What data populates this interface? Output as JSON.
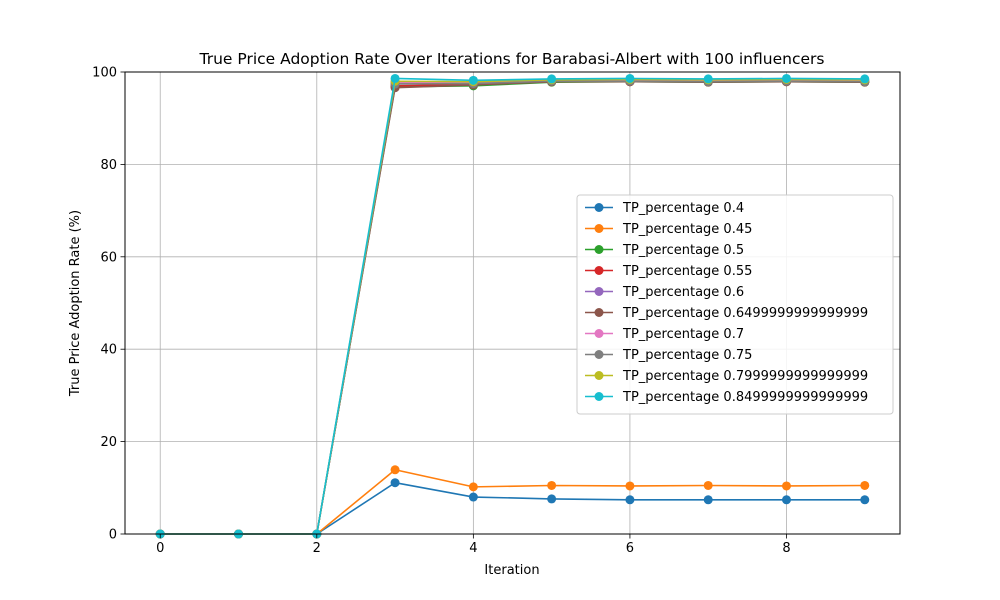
{
  "chart_data": {
    "type": "line",
    "title": "True Price Adoption Rate Over Iterations for Barabasi-Albert with 100 influencers",
    "xlabel": "Iteration",
    "ylabel": "True Price Adoption Rate (%)",
    "xlim": [
      -0.45,
      9.45
    ],
    "ylim": [
      0,
      100
    ],
    "xticks": [
      "0",
      "2",
      "4",
      "6",
      "8"
    ],
    "yticks": [
      "0",
      "20",
      "40",
      "60",
      "80",
      "100"
    ],
    "grid": true,
    "legend_position": "center-right",
    "x": [
      0,
      1,
      2,
      3,
      4,
      5,
      6,
      7,
      8,
      9
    ],
    "series": [
      {
        "name": "TP_percentage 0.4",
        "color": "#1f77b4",
        "values": [
          0,
          0,
          0,
          11.1,
          8.0,
          7.6,
          7.4,
          7.4,
          7.4,
          7.4
        ]
      },
      {
        "name": "TP_percentage 0.45",
        "color": "#ff7f0e",
        "values": [
          0,
          0,
          0,
          13.9,
          10.2,
          10.5,
          10.4,
          10.5,
          10.4,
          10.5
        ]
      },
      {
        "name": "TP_percentage 0.5",
        "color": "#2ca02c",
        "values": [
          0,
          0,
          0,
          96.8,
          97.0,
          97.8,
          97.9,
          97.8,
          97.9,
          97.8
        ]
      },
      {
        "name": "TP_percentage 0.55",
        "color": "#d62728",
        "values": [
          0,
          0,
          0,
          97.0,
          97.3,
          97.9,
          97.9,
          97.9,
          97.9,
          97.9
        ]
      },
      {
        "name": "TP_percentage 0.6",
        "color": "#9467bd",
        "values": [
          0,
          0,
          0,
          97.5,
          97.6,
          98.1,
          98.2,
          98.1,
          98.2,
          98.1
        ]
      },
      {
        "name": "TP_percentage 0.6499999999999999",
        "color": "#8c564b",
        "values": [
          0,
          0,
          0,
          96.6,
          97.2,
          97.9,
          97.9,
          97.8,
          97.9,
          97.8
        ]
      },
      {
        "name": "TP_percentage 0.7",
        "color": "#e377c2",
        "values": [
          0,
          0,
          0,
          97.8,
          97.6,
          98.2,
          98.3,
          98.2,
          98.3,
          98.2
        ]
      },
      {
        "name": "TP_percentage 0.75",
        "color": "#7f7f7f",
        "values": [
          0,
          0,
          0,
          97.4,
          97.5,
          98.0,
          98.0,
          97.9,
          98.0,
          97.9
        ]
      },
      {
        "name": "TP_percentage 0.7999999999999999",
        "color": "#bcbd22",
        "values": [
          0,
          0,
          0,
          98.0,
          97.9,
          98.3,
          98.4,
          98.3,
          98.4,
          98.3
        ]
      },
      {
        "name": "TP_percentage 0.8499999999999999",
        "color": "#17becf",
        "values": [
          0,
          0,
          0,
          98.6,
          98.2,
          98.5,
          98.6,
          98.5,
          98.6,
          98.5
        ]
      }
    ]
  }
}
